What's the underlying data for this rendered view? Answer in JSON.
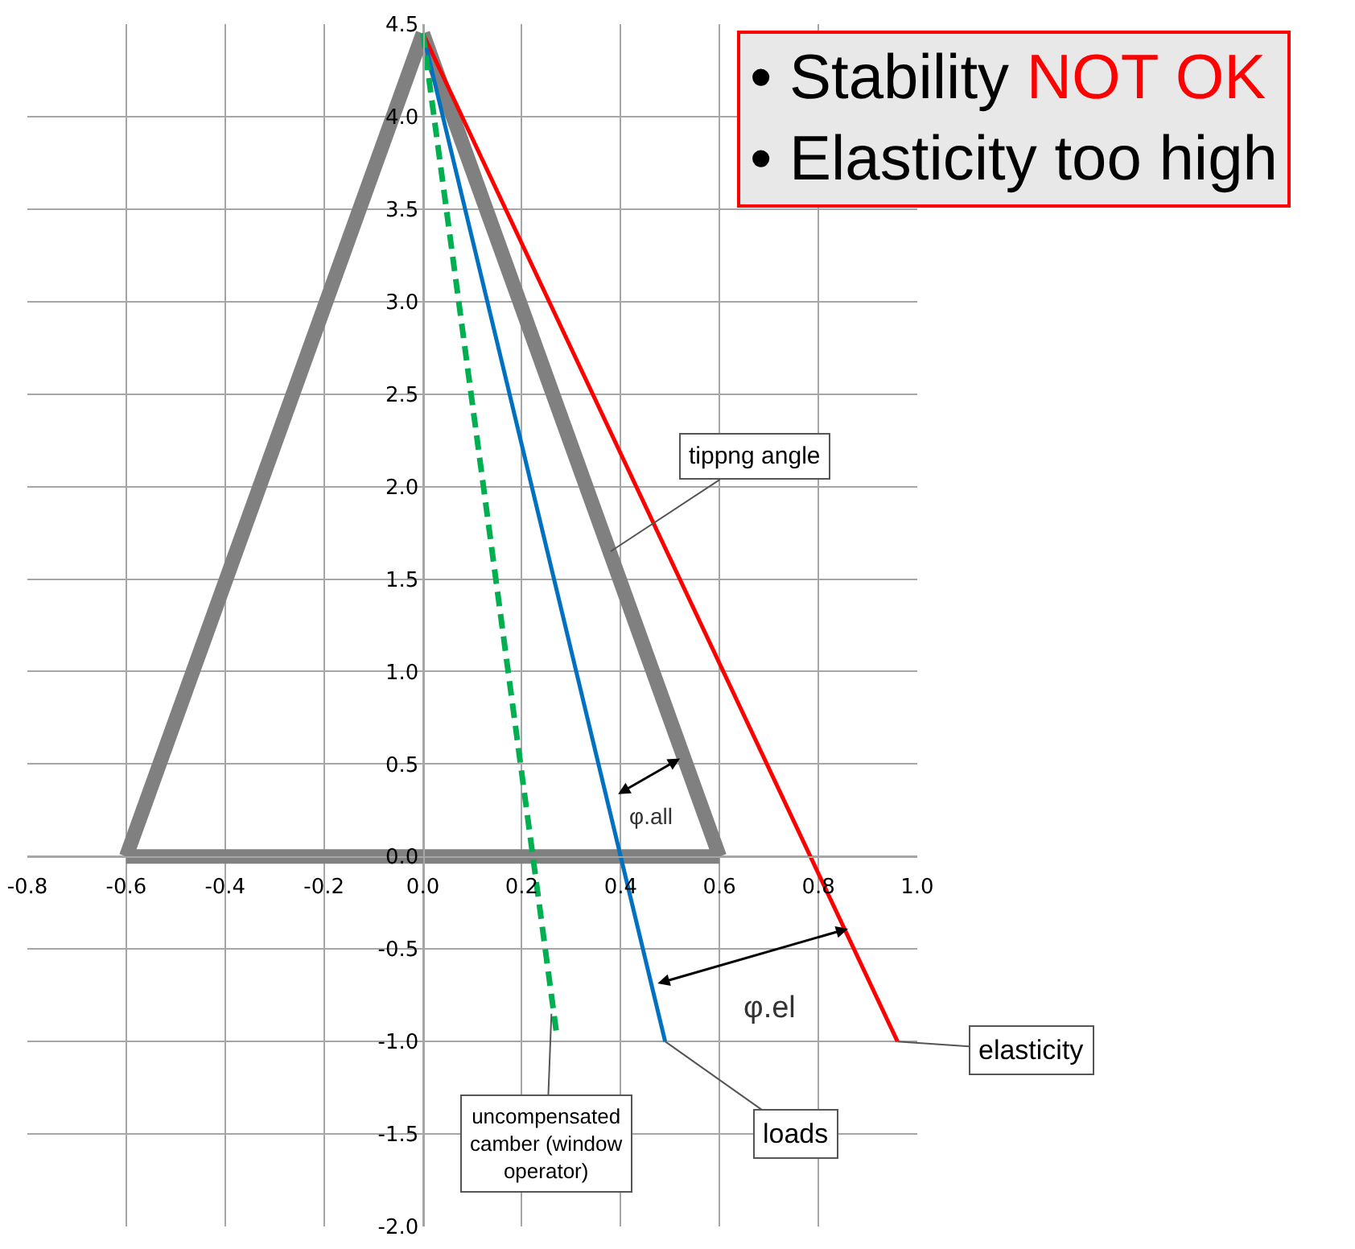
{
  "chart_data": {
    "type": "line",
    "series": [
      {
        "color": "#808080",
        "x": [
          -0.6,
          0
        ],
        "values": [
          0,
          4.45
        ]
      },
      {
        "color": "#808080",
        "x": [
          0,
          0.6
        ],
        "values": [
          4.45,
          0
        ]
      },
      {
        "color": "#808080",
        "x": [
          -0.6,
          0.6
        ],
        "values": [
          0,
          0
        ]
      },
      {
        "color": "#ff0000",
        "x": [
          0,
          0.96
        ],
        "values": [
          4.45,
          -1.0
        ]
      },
      {
        "color": "#0070c0",
        "x": [
          0,
          0.49
        ],
        "values": [
          4.45,
          -1.0
        ]
      },
      {
        "color": "#00b050",
        "x": [
          0,
          0.27
        ],
        "values": [
          4.45,
          -0.95
        ],
        "line_style": "dashed"
      }
    ],
    "xlim": [
      -0.8,
      1.0
    ],
    "xticks": [
      -0.8,
      -0.6,
      -0.4,
      -0.2,
      {
        "value": 0,
        "label": "0.0"
      },
      0.2,
      0.4,
      0.6,
      0.8,
      {
        "value": 1,
        "label": "1.0"
      }
    ],
    "ylim": [
      -2.0,
      4.5
    ],
    "yticks": [
      {
        "value": -2,
        "label": "-2.0"
      },
      -1.5,
      {
        "value": -1,
        "label": "-1.0"
      },
      -0.5,
      {
        "value": 0,
        "label": "0.0"
      },
      0.5,
      {
        "value": 1,
        "label": "1.0"
      },
      1.5,
      {
        "value": 2,
        "label": "2.0"
      },
      2.5,
      {
        "value": 3,
        "label": "3.0"
      },
      3.5,
      {
        "value": 4,
        "label": "4.0"
      },
      4.5
    ],
    "grid": true,
    "marker": "none",
    "line_style": "solid",
    "annotations": [
      "• Stability",
      "NOT OK",
      "• Elasticity too high",
      {
        "text": "tippng angle",
        "x": 0.38,
        "y": 1.65
      },
      {
        "text": "elasticity",
        "x": 0.96,
        "y": -1.0
      },
      {
        "text": "loads",
        "x": 0.49,
        "y": -1.0
      },
      {
        "text": "uncompensated camber (window operator)",
        "x": 0.26,
        "y": -0.85
      },
      "φ.all",
      "φ.el"
    ]
  }
}
